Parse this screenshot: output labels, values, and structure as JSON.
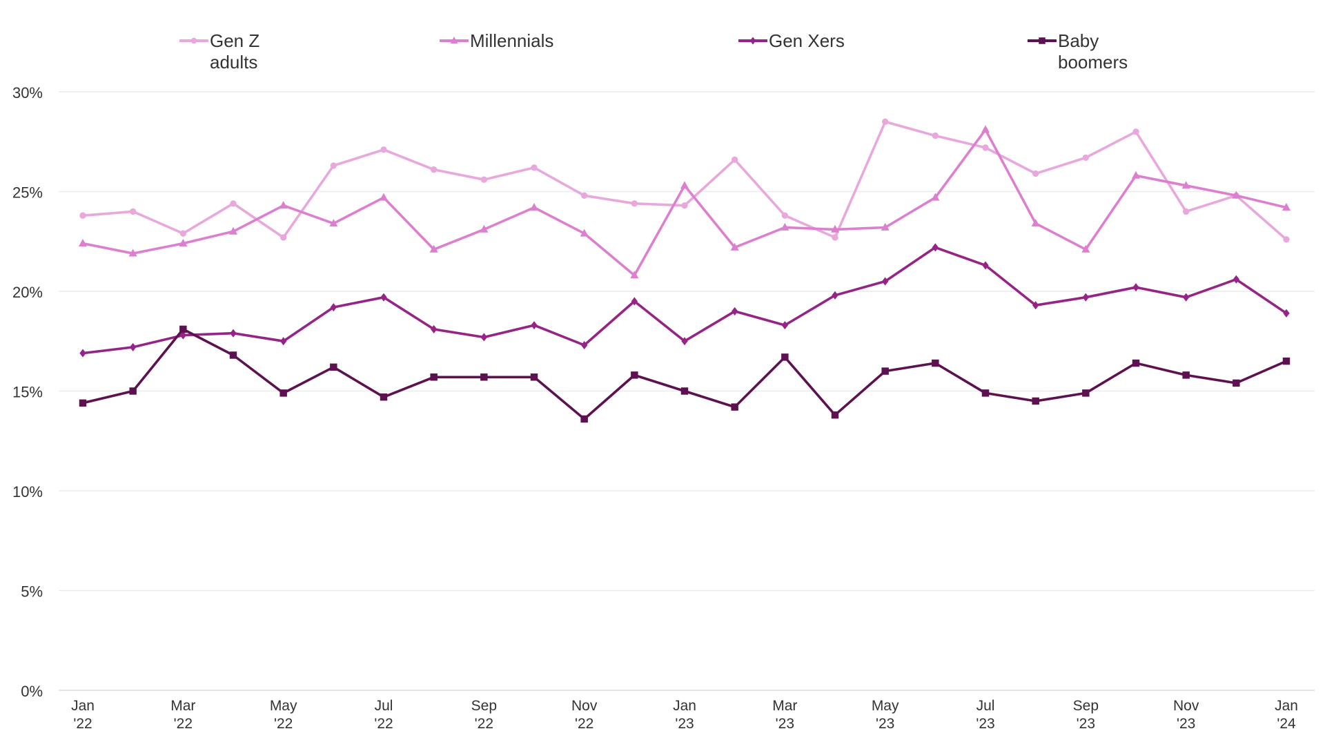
{
  "chart_data": {
    "type": "line",
    "categories": [
      "Jan '22",
      "Feb '22",
      "Mar '22",
      "Apr '22",
      "May '22",
      "Jun '22",
      "Jul '22",
      "Aug '22",
      "Sep '22",
      "Oct '22",
      "Nov '22",
      "Dec '22",
      "Jan '23",
      "Feb '23",
      "Mar '23",
      "Apr '23",
      "May '23",
      "Jun '23",
      "Jul '23",
      "Aug '23",
      "Sep '23",
      "Oct '23",
      "Nov '23",
      "Dec '23",
      "Jan '24"
    ],
    "x_tick_labels": [
      {
        "month": "Jan",
        "year": "'22"
      },
      {
        "month": "Mar",
        "year": "'22"
      },
      {
        "month": "May",
        "year": "'22"
      },
      {
        "month": "Jul",
        "year": "'22"
      },
      {
        "month": "Sep",
        "year": "'22"
      },
      {
        "month": "Nov",
        "year": "'22"
      },
      {
        "month": "Jan",
        "year": "'23"
      },
      {
        "month": "Mar",
        "year": "'23"
      },
      {
        "month": "May",
        "year": "'23"
      },
      {
        "month": "Jul",
        "year": "'23"
      },
      {
        "month": "Sep",
        "year": "'23"
      },
      {
        "month": "Nov",
        "year": "'23"
      },
      {
        "month": "Jan",
        "year": "'24"
      }
    ],
    "y_ticks": [
      "0%",
      "5%",
      "10%",
      "15%",
      "20%",
      "25%",
      "30%"
    ],
    "ylim": [
      0,
      30
    ],
    "grid": true,
    "legend_position": "top",
    "series": [
      {
        "name": "Gen Z\nadults",
        "color": "#e9a8dc",
        "marker": "circle",
        "values": [
          23.8,
          24.0,
          22.9,
          24.4,
          22.7,
          26.3,
          27.1,
          26.1,
          25.6,
          26.2,
          24.8,
          24.4,
          24.3,
          26.6,
          23.8,
          22.7,
          28.5,
          27.8,
          27.2,
          25.9,
          26.7,
          28.0,
          24.0,
          24.8,
          22.6
        ]
      },
      {
        "name": "Millennials",
        "color": "#dd7fcf",
        "marker": "triangle",
        "values": [
          22.4,
          21.9,
          22.4,
          23.0,
          24.3,
          23.4,
          24.7,
          22.1,
          23.1,
          24.2,
          22.9,
          20.8,
          25.3,
          22.2,
          23.2,
          23.1,
          23.2,
          24.7,
          28.1,
          23.4,
          22.1,
          25.8,
          25.3,
          24.8,
          24.2
        ]
      },
      {
        "name": "Gen Xers",
        "color": "#962487",
        "marker": "diamond",
        "values": [
          16.9,
          17.2,
          17.8,
          17.9,
          17.5,
          19.2,
          19.7,
          18.1,
          17.7,
          18.3,
          17.3,
          19.5,
          17.5,
          19.0,
          18.3,
          19.8,
          20.5,
          22.2,
          21.3,
          19.3,
          19.7,
          20.2,
          19.7,
          20.6,
          18.9
        ]
      },
      {
        "name": "Baby\nboomers",
        "color": "#5e1150",
        "marker": "square",
        "values": [
          14.4,
          15.0,
          18.1,
          16.8,
          14.9,
          16.2,
          14.7,
          15.7,
          15.7,
          15.7,
          13.6,
          15.8,
          15.0,
          14.2,
          16.7,
          13.8,
          16.0,
          16.4,
          14.9,
          14.5,
          14.9,
          16.4,
          15.8,
          15.4,
          16.5
        ]
      }
    ]
  }
}
